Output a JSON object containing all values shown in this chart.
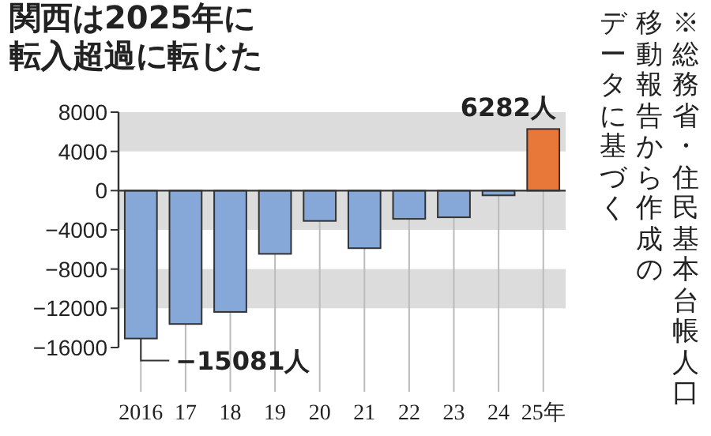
{
  "chart_data": {
    "type": "bar",
    "title": "関西は2025年に転入超過に転じた",
    "categories": [
      "2016",
      "17",
      "18",
      "19",
      "20",
      "21",
      "22",
      "23",
      "24",
      "25年"
    ],
    "values": [
      -15081,
      -13600,
      -12370,
      -6450,
      -3090,
      -5870,
      -2880,
      -2720,
      -480,
      6282
    ],
    "colors": [
      "#86a8d8",
      "#86a8d8",
      "#86a8d8",
      "#86a8d8",
      "#86a8d8",
      "#86a8d8",
      "#86a8d8",
      "#86a8d8",
      "#86a8d8",
      "#e8773a"
    ],
    "ylim": [
      -16000,
      8000
    ],
    "yticks": [
      8000,
      4000,
      0,
      -4000,
      -8000,
      -12000,
      -16000
    ],
    "bands": [
      {
        "axis": "y",
        "from": 4000,
        "to": 8000,
        "color": "#dcdcdc"
      },
      {
        "axis": "y",
        "from": -4000,
        "to": 0,
        "color": "#dcdcdc"
      },
      {
        "axis": "y",
        "from": -12000,
        "to": -8000,
        "color": "#dcdcdc"
      }
    ],
    "grid": "x",
    "annotations": [
      {
        "text": "6282人",
        "x": "25年",
        "y": 6282
      },
      {
        "text": "−15081人",
        "x": "2016",
        "y": -15081
      },
      "※総務省・住民基本台帳人口",
      "移動報告から作成の",
      "データに基づく"
    ]
  }
}
